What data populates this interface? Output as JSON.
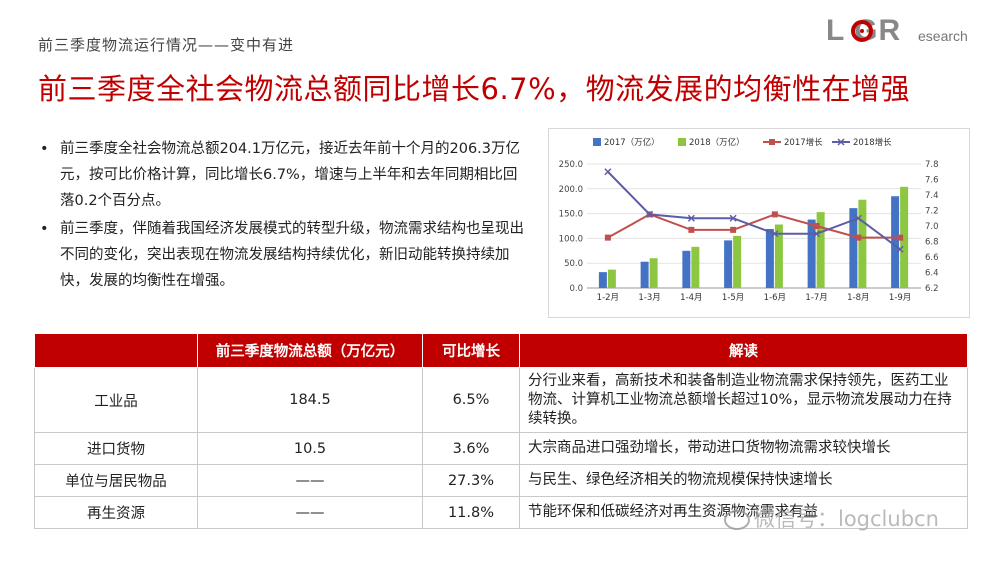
{
  "header": {
    "subtitle": "前三季度物流运行情况——变中有进",
    "logo_text": "LOGResearch",
    "logo_brand": "L GR",
    "logo_suffix": "esearch",
    "title": "前三季度全社会物流总额同比增长6.7%，物流发展的均衡性在增强"
  },
  "bullets": [
    "前三季度全社会物流总额204.1万亿元，接近去年前十个月的206.3万亿元，按可比价格计算，同比增长6.7%，增速与上半年和去年同期相比回落0.2个百分点。",
    "前三季度，伴随着我国经济发展模式的转型升级，物流需求结构也呈现出不同的变化，突出表现在物流发展结构持续优化，新旧动能转换持续加快，发展的均衡性在增强。"
  ],
  "bullet_marker": "•",
  "chart_data": {
    "type": "bar",
    "categories": [
      "1-2月",
      "1-3月",
      "1-4月",
      "1-5月",
      "1-6月",
      "1-7月",
      "1-8月",
      "1-9月"
    ],
    "series": [
      {
        "name": "2017（万亿）",
        "type": "bar",
        "axis": "left",
        "color": "#4472c4",
        "values": [
          32,
          53,
          75,
          96,
          119,
          138,
          161,
          185
        ]
      },
      {
        "name": "2018（万亿）",
        "type": "bar",
        "axis": "left",
        "color": "#8dc641",
        "values": [
          37,
          60,
          83,
          105,
          128,
          153,
          178,
          204
        ]
      },
      {
        "name": "2017增长",
        "type": "line",
        "axis": "right",
        "color": "#c0504d",
        "marker": "square",
        "values": [
          6.85,
          7.15,
          6.95,
          6.95,
          7.15,
          7.0,
          6.85,
          6.85
        ]
      },
      {
        "name": "2018增长",
        "type": "line",
        "axis": "right",
        "color": "#5b5ea6",
        "marker": "x",
        "values": [
          7.7,
          7.15,
          7.1,
          7.1,
          6.9,
          6.9,
          7.1,
          6.7
        ]
      }
    ],
    "y_left": {
      "min": 0,
      "max": 250,
      "ticks": [
        "0.0",
        "50.0",
        "100.0",
        "150.0",
        "200.0",
        "250.0"
      ]
    },
    "y_right": {
      "min": 6.2,
      "max": 7.8,
      "ticks": [
        "6.2",
        "6.4",
        "6.6",
        "6.8",
        "7.0",
        "7.2",
        "7.4",
        "7.6",
        "7.8"
      ]
    },
    "grid": true,
    "legend_position": "top"
  },
  "table": {
    "headers": [
      "",
      "前三季度物流总额（万亿元）",
      "可比增长",
      "解读"
    ],
    "rows": [
      {
        "category": "工业品",
        "amount": "184.5",
        "growth": "6.5%",
        "interpretation": "分行业来看，高新技术和装备制造业物流需求保持领先，医药工业物流、计算机工业物流总额增长超过10%，显示物流发展动力在持续转换。"
      },
      {
        "category": "进口货物",
        "amount": "10.5",
        "growth": "3.6%",
        "interpretation": "大宗商品进口强劲增长，带动进口货物物流需求较快增长"
      },
      {
        "category": "单位与居民物品",
        "amount": "——",
        "growth": "27.3%",
        "interpretation": "与民生、绿色经济相关的物流规模保持快速增长"
      },
      {
        "category": "再生资源",
        "amount": "——",
        "growth": "11.8%",
        "interpretation": "节能环保和低碳经济对再生资源物流需求有益"
      }
    ]
  },
  "watermark": "微信号：logclubcn",
  "colors": {
    "accent": "#c00000",
    "bar2017": "#4472c4",
    "bar2018": "#8dc641",
    "line2017": "#c0504d",
    "line2018": "#5b5ea6"
  }
}
